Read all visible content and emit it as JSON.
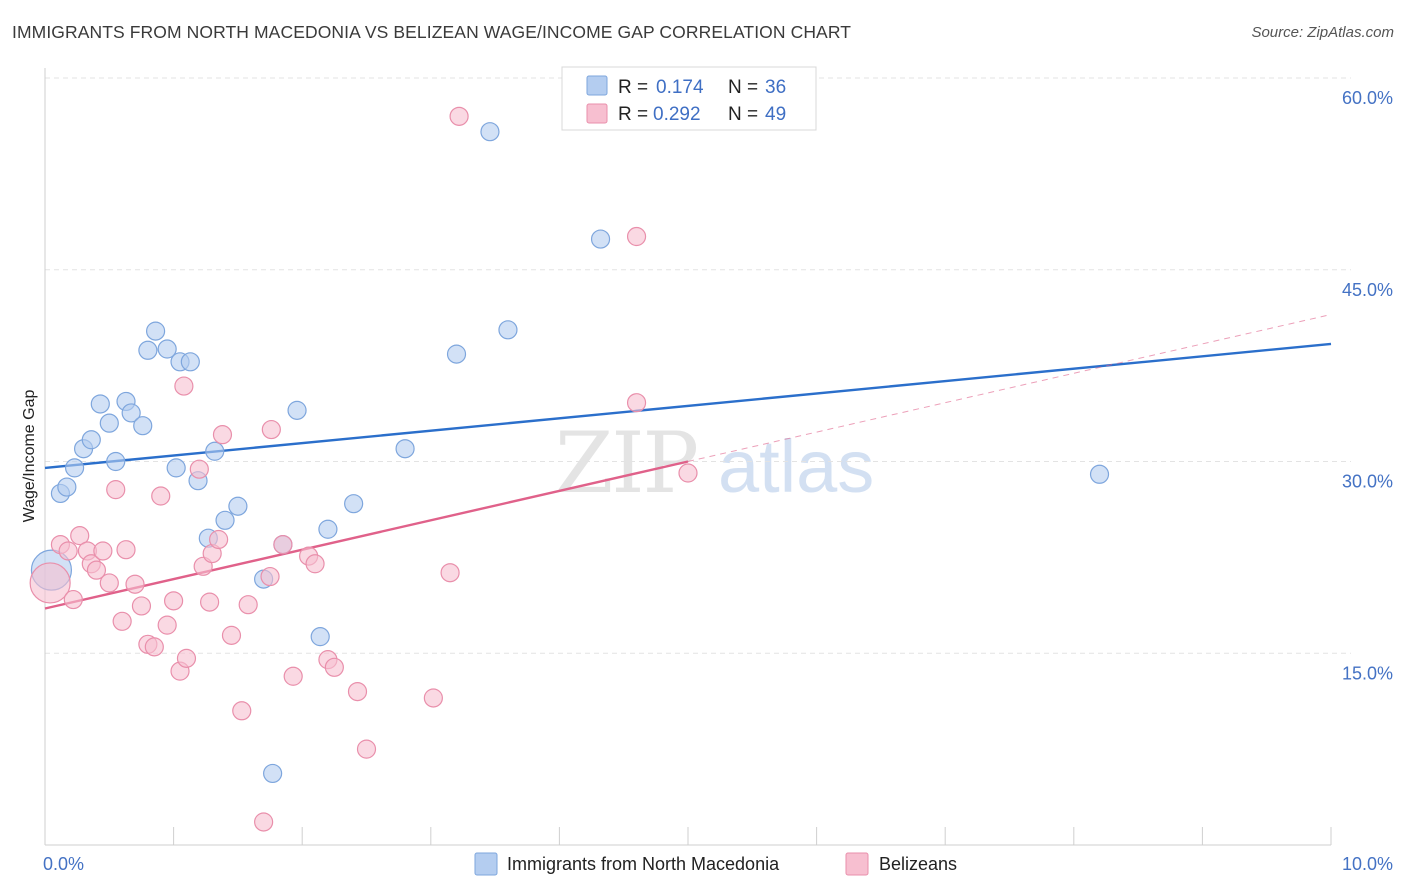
{
  "header": {
    "title": "IMMIGRANTS FROM NORTH MACEDONIA VS BELIZEAN WAGE/INCOME GAP CORRELATION CHART",
    "source": "Source: ZipAtlas.com"
  },
  "watermark": {
    "zip": "ZIP",
    "atlas": "atlas"
  },
  "colors": {
    "blue_fill": "#b4cdf0",
    "blue_stroke": "#7ea6dd",
    "blue_line": "#2b6fcb",
    "pink_fill": "#f7bfd0",
    "pink_stroke": "#e98fab",
    "pink_line": "#e0618a",
    "grid": "#e3e3e3",
    "tick_text": "#4472c4"
  },
  "legend": {
    "rows": [
      {
        "r_label": "R =",
        "r_value": "0.174",
        "n_label": "N =",
        "n_value": "36"
      },
      {
        "r_label": "R =",
        "r_value": "0.292",
        "n_label": "N =",
        "n_value": "49"
      }
    ]
  },
  "bottom_legend": [
    "Immigrants from North Macedonia",
    "Belizeans"
  ],
  "chart_data": {
    "type": "scatter",
    "title": "IMMIGRANTS FROM NORTH MACEDONIA VS BELIZEAN WAGE/INCOME GAP CORRELATION CHART",
    "xlabel": "",
    "ylabel": "Wage/Income Gap",
    "xlim": [
      0,
      10
    ],
    "ylim": [
      0,
      60
    ],
    "x_tick_labels": [
      "0.0%",
      "10.0%"
    ],
    "y_ticks": [
      15,
      30,
      45,
      60
    ],
    "y_tick_labels": [
      "15.0%",
      "30.0%",
      "45.0%",
      "60.0%"
    ],
    "grid": true,
    "legend_position": "top-center",
    "series": [
      {
        "name": "Immigrants from North Macedonia",
        "r": 0.174,
        "n": 36,
        "trend": {
          "x": [
            0,
            10
          ],
          "y": [
            29.5,
            39.2
          ]
        },
        "points": [
          {
            "x": 0.05,
            "y": 21.5,
            "big": true
          },
          {
            "x": 0.12,
            "y": 27.5
          },
          {
            "x": 0.17,
            "y": 28.0
          },
          {
            "x": 0.23,
            "y": 29.5
          },
          {
            "x": 0.3,
            "y": 31.0
          },
          {
            "x": 0.36,
            "y": 31.7
          },
          {
            "x": 0.43,
            "y": 34.5
          },
          {
            "x": 0.5,
            "y": 33.0
          },
          {
            "x": 0.55,
            "y": 30.0
          },
          {
            "x": 0.63,
            "y": 34.7
          },
          {
            "x": 0.67,
            "y": 33.8
          },
          {
            "x": 0.76,
            "y": 32.8
          },
          {
            "x": 0.8,
            "y": 38.7
          },
          {
            "x": 0.86,
            "y": 40.2
          },
          {
            "x": 0.95,
            "y": 38.8
          },
          {
            "x": 1.02,
            "y": 29.5
          },
          {
            "x": 1.05,
            "y": 37.8
          },
          {
            "x": 1.13,
            "y": 37.8
          },
          {
            "x": 1.19,
            "y": 28.5
          },
          {
            "x": 1.27,
            "y": 24.0
          },
          {
            "x": 1.32,
            "y": 30.8
          },
          {
            "x": 1.4,
            "y": 25.4
          },
          {
            "x": 1.5,
            "y": 26.5
          },
          {
            "x": 1.7,
            "y": 20.8
          },
          {
            "x": 1.85,
            "y": 23.5
          },
          {
            "x": 1.96,
            "y": 34.0
          },
          {
            "x": 2.14,
            "y": 16.3
          },
          {
            "x": 2.2,
            "y": 24.7
          },
          {
            "x": 2.4,
            "y": 26.7
          },
          {
            "x": 2.8,
            "y": 31.0
          },
          {
            "x": 3.2,
            "y": 38.4
          },
          {
            "x": 3.46,
            "y": 55.8
          },
          {
            "x": 3.6,
            "y": 40.3
          },
          {
            "x": 4.32,
            "y": 47.4
          },
          {
            "x": 8.2,
            "y": 29.0
          },
          {
            "x": 1.77,
            "y": 5.6
          }
        ]
      },
      {
        "name": "Belizeans",
        "r": 0.292,
        "n": 49,
        "trend": {
          "x": [
            0,
            5.0
          ],
          "y": [
            18.5,
            30.0
          ]
        },
        "trend_ext": {
          "x": [
            5.0,
            10
          ],
          "y": [
            30.0,
            41.5
          ]
        },
        "points": [
          {
            "x": 0.04,
            "y": 20.5,
            "big": true
          },
          {
            "x": 0.12,
            "y": 23.5
          },
          {
            "x": 0.18,
            "y": 23.0
          },
          {
            "x": 0.22,
            "y": 19.2
          },
          {
            "x": 0.27,
            "y": 24.2
          },
          {
            "x": 0.33,
            "y": 23.0
          },
          {
            "x": 0.36,
            "y": 22.0
          },
          {
            "x": 0.4,
            "y": 21.5
          },
          {
            "x": 0.45,
            "y": 23.0
          },
          {
            "x": 0.5,
            "y": 20.5
          },
          {
            "x": 0.55,
            "y": 27.8
          },
          {
            "x": 0.6,
            "y": 17.5
          },
          {
            "x": 0.63,
            "y": 23.1
          },
          {
            "x": 0.7,
            "y": 20.4
          },
          {
            "x": 0.75,
            "y": 18.7
          },
          {
            "x": 0.8,
            "y": 15.7
          },
          {
            "x": 0.85,
            "y": 15.5
          },
          {
            "x": 0.9,
            "y": 27.3
          },
          {
            "x": 0.95,
            "y": 17.2
          },
          {
            "x": 1.0,
            "y": 19.1
          },
          {
            "x": 1.05,
            "y": 13.6
          },
          {
            "x": 1.08,
            "y": 35.9
          },
          {
            "x": 1.1,
            "y": 14.6
          },
          {
            "x": 1.2,
            "y": 29.4
          },
          {
            "x": 1.23,
            "y": 21.8
          },
          {
            "x": 1.28,
            "y": 19.0
          },
          {
            "x": 1.3,
            "y": 22.8
          },
          {
            "x": 1.35,
            "y": 23.9
          },
          {
            "x": 1.38,
            "y": 32.1
          },
          {
            "x": 1.45,
            "y": 16.4
          },
          {
            "x": 1.53,
            "y": 10.5
          },
          {
            "x": 1.58,
            "y": 18.8
          },
          {
            "x": 1.7,
            "y": 1.8
          },
          {
            "x": 1.75,
            "y": 21.0
          },
          {
            "x": 1.76,
            "y": 32.5
          },
          {
            "x": 1.85,
            "y": 23.5
          },
          {
            "x": 1.93,
            "y": 13.2
          },
          {
            "x": 2.05,
            "y": 22.6
          },
          {
            "x": 2.2,
            "y": 14.5
          },
          {
            "x": 2.25,
            "y": 13.9
          },
          {
            "x": 2.43,
            "y": 12.0
          },
          {
            "x": 2.5,
            "y": 7.5
          },
          {
            "x": 3.02,
            "y": 11.5
          },
          {
            "x": 3.15,
            "y": 21.3
          },
          {
            "x": 3.22,
            "y": 57.0
          },
          {
            "x": 4.6,
            "y": 47.6
          },
          {
            "x": 4.6,
            "y": 34.6
          },
          {
            "x": 5.0,
            "y": 29.1
          },
          {
            "x": 2.1,
            "y": 22.0
          }
        ]
      }
    ]
  }
}
